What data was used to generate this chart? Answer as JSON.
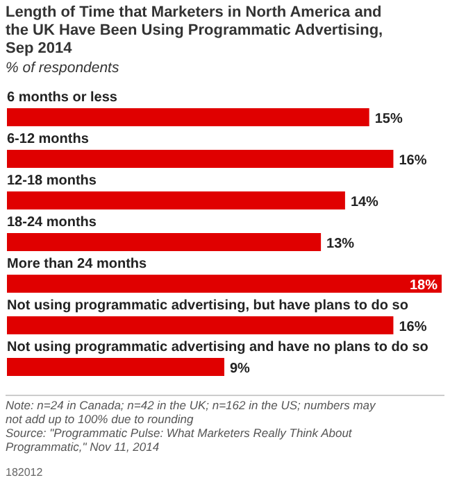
{
  "chart_data": {
    "type": "bar",
    "orientation": "horizontal",
    "title": "Length of Time that Marketers in North America and the UK Have Been Using Programmatic Advertising, Sep 2014",
    "subtitle": "% of respondents",
    "categories": [
      "6 months or less",
      "6-12 months",
      "12-18 months",
      "18-24 months",
      "More than 24 months",
      "Not using programmatic advertising, but have plans to do so",
      "Not using programmatic advertising and have no plans to do so"
    ],
    "values": [
      15,
      16,
      14,
      13,
      18,
      16,
      9
    ],
    "color": "#e00000",
    "data_labels": true,
    "value_labels": [
      "15%",
      "16%",
      "14%",
      "13%",
      "18%",
      "16%",
      "9%"
    ],
    "annotations": [
      "Note: n=24 in Canada; n=42 in the UK; n=162 in the US; numbers may not add up to 100% due to rounding",
      "Source: \"Programmatic Pulse: What Marketers Really Think About Programmatic,\" Nov 11, 2014",
      "182012"
    ]
  }
}
